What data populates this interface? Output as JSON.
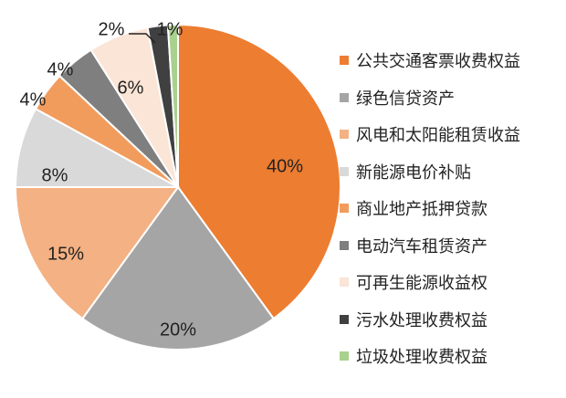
{
  "chart_data": {
    "type": "pie",
    "title": "",
    "slices": [
      {
        "label": "公共交通客票收费权益",
        "value": 40,
        "display": "40%",
        "color": "#ed7d31"
      },
      {
        "label": "绿色信贷资产",
        "value": 20,
        "display": "20%",
        "color": "#a5a5a5"
      },
      {
        "label": "风电和太阳能租赁收益",
        "value": 15,
        "display": "15%",
        "color": "#f4b183"
      },
      {
        "label": "新能源电价补贴",
        "value": 8,
        "display": "8%",
        "color": "#d9d9d9"
      },
      {
        "label": "商业地产抵押贷款",
        "value": 4,
        "display": "4%",
        "color": "#f19c5d"
      },
      {
        "label": "电动汽车租赁资产",
        "value": 4,
        "display": "4%",
        "color": "#7f7f7f"
      },
      {
        "label": "可再生能源收益权",
        "value": 6,
        "display": "6%",
        "color": "#fbe5d6"
      },
      {
        "label": "污水处理收费权益",
        "value": 2,
        "display": "2%",
        "color": "#404040"
      },
      {
        "label": "垃圾处理收费权益",
        "value": 1,
        "display": "1%",
        "color": "#a9d18e"
      }
    ],
    "legend_position": "right"
  }
}
